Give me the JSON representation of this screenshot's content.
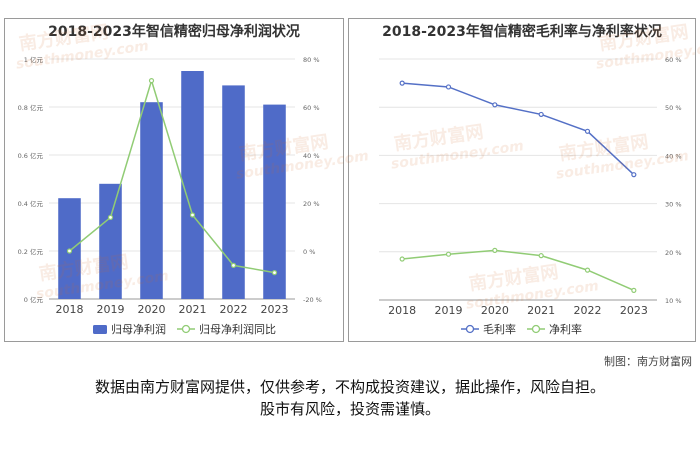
{
  "chart_data": [
    {
      "type": "bar",
      "title": "2018-2023年智信精密归母净利润状况",
      "categories": [
        "2018",
        "2019",
        "2020",
        "2021",
        "2022",
        "2023"
      ],
      "series": [
        {
          "name": "归母净利润",
          "type": "bar",
          "axis": "left",
          "color": "#4f6bc8",
          "values": [
            0.42,
            0.48,
            0.82,
            0.95,
            0.89,
            0.81
          ]
        },
        {
          "name": "归母净利润同比",
          "type": "line",
          "axis": "right",
          "color": "#91cc75",
          "values": [
            0,
            14,
            71,
            15,
            -6,
            -9
          ]
        }
      ],
      "y_left": {
        "ylim": [
          0,
          1
        ],
        "ticks": [
          "0 亿元",
          "0.2 亿元",
          "0.4 亿元",
          "0.6 亿元",
          "0.8 亿元",
          "1 亿元"
        ]
      },
      "y_right": {
        "ylim": [
          -20,
          80
        ],
        "ticks": [
          "-20 %",
          "0 %",
          "20 %",
          "40 %",
          "60 %",
          "80 %"
        ]
      },
      "legend": "bottom-center",
      "grid": true
    },
    {
      "type": "line",
      "title": "2018-2023年智信精密毛利率与净利率状况",
      "categories": [
        "2018",
        "2019",
        "2020",
        "2021",
        "2022",
        "2023"
      ],
      "series": [
        {
          "name": "毛利率",
          "color": "#5470c6",
          "values": [
            55,
            54.2,
            50.5,
            48.5,
            45,
            36
          ]
        },
        {
          "name": "净利率",
          "color": "#91cc75",
          "values": [
            18.5,
            19.5,
            20.3,
            19.2,
            16.2,
            12
          ]
        }
      ],
      "y_right": {
        "ylim": [
          10,
          60
        ],
        "ticks": [
          "10 %",
          "20 %",
          "30 %",
          "40 %",
          "50 %",
          "60 %"
        ]
      },
      "legend": "bottom-center",
      "grid": true
    }
  ],
  "credit": "制图：南方财富网",
  "disclaimer": {
    "line1": "数据由南方财富网提供，仅供参考，不构成投资建议，据此操作，风险自担。",
    "line2": "股市有风险，投资需谨慎。"
  },
  "watermark": {
    "cn": "南方财富网",
    "en": "southmoney.com"
  }
}
